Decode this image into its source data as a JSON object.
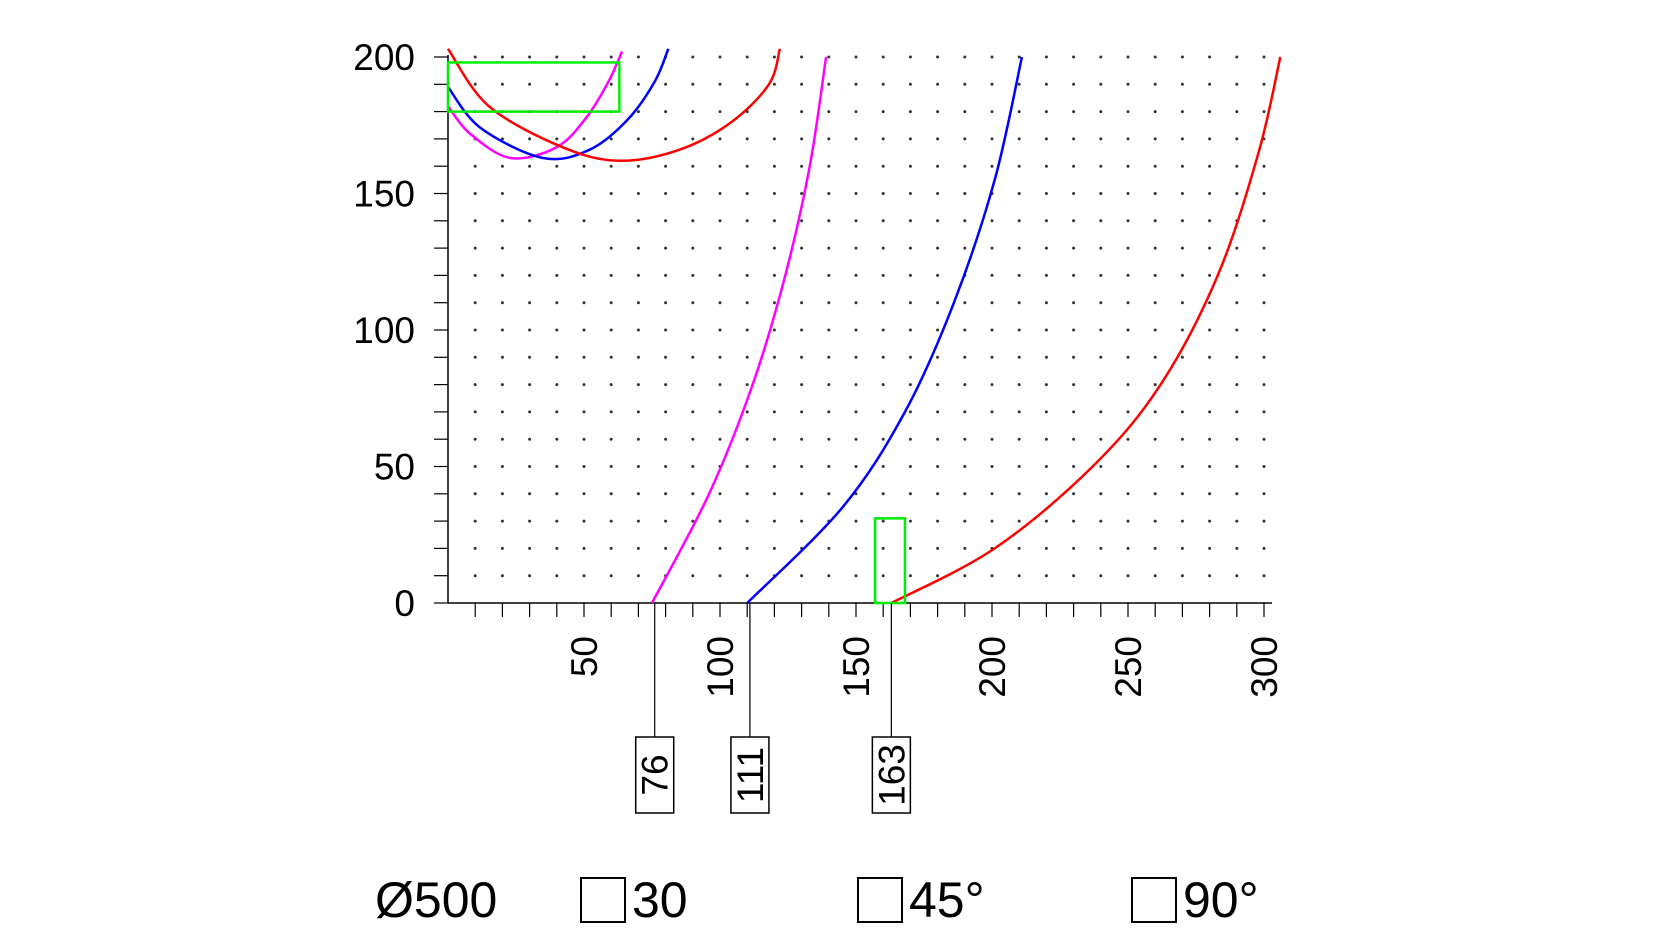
{
  "chart_data": {
    "type": "line",
    "title": "",
    "xlabel": "",
    "ylabel": "",
    "xlim": [
      0,
      300
    ],
    "ylim": [
      0,
      200
    ],
    "x_ticks": [
      50,
      100,
      150,
      200,
      250,
      300
    ],
    "y_ticks": [
      0,
      50,
      100,
      150,
      200
    ],
    "grid": "dotted",
    "series": [
      {
        "color": "#ff00ff",
        "points": [
          [
            75,
            0
          ],
          [
            96,
            40
          ],
          [
            112,
            80
          ],
          [
            124,
            120
          ],
          [
            133,
            160
          ],
          [
            139,
            200
          ]
        ]
      },
      {
        "color": "#0000ff",
        "points": [
          [
            110,
            0
          ],
          [
            145,
            35
          ],
          [
            168,
            70
          ],
          [
            186,
            110
          ],
          [
            201,
            155
          ],
          [
            211,
            200
          ]
        ]
      },
      {
        "color": "#ff0000",
        "points": [
          [
            163,
            0
          ],
          [
            201,
            20
          ],
          [
            237,
            50
          ],
          [
            262,
            80
          ],
          [
            283,
            120
          ],
          [
            298,
            165
          ],
          [
            306,
            200
          ]
        ]
      },
      {
        "color": "#ff00ff",
        "points": [
          [
            0,
            182
          ],
          [
            8,
            172
          ],
          [
            23,
            163
          ],
          [
            40,
            167
          ],
          [
            51,
            178
          ],
          [
            59,
            191
          ],
          [
            64,
            202
          ]
        ]
      },
      {
        "color": "#0000ff",
        "points": [
          [
            0,
            189
          ],
          [
            12,
            174
          ],
          [
            35,
            163
          ],
          [
            52,
            166
          ],
          [
            66,
            177
          ],
          [
            76,
            191
          ],
          [
            81,
            203
          ]
        ]
      },
      {
        "color": "#ff0000",
        "points": [
          [
            0,
            203
          ],
          [
            15,
            182
          ],
          [
            42,
            167
          ],
          [
            63,
            162
          ],
          [
            85,
            166
          ],
          [
            104,
            176
          ],
          [
            118,
            190
          ],
          [
            122,
            203
          ]
        ]
      }
    ],
    "callouts": [
      {
        "x": 76,
        "label": "76"
      },
      {
        "x": 111,
        "label": "111"
      },
      {
        "x": 163,
        "label": "163"
      }
    ],
    "highlight_boxes": [
      {
        "color": "#00ee00",
        "x": [
          0,
          63
        ],
        "y": [
          180,
          198
        ]
      },
      {
        "color": "#00ee00",
        "x": [
          157,
          168
        ],
        "y": [
          0,
          31
        ]
      }
    ]
  },
  "legend": {
    "diameter": "Ø500",
    "item1": "30",
    "item2": "45°",
    "item3": "90°"
  }
}
